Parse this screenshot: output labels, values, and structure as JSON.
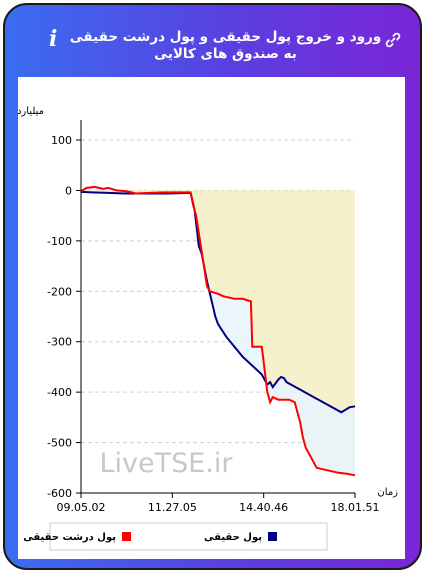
{
  "header": {
    "title": "ورود و خروج پول حقیقی و پول درشت حقیقی به صندوق های کالایی",
    "info_icon": "info-icon",
    "link_icon": "link-icon"
  },
  "watermark": "LiveTSE.ir",
  "colors": {
    "series_real": "#000080",
    "series_big": "#ff0000",
    "fill_upper": "#f5f0c8",
    "fill_lower": "#fdf6c4",
    "fill_between": "#e8f3fb"
  },
  "chart_data": {
    "type": "line",
    "ylabel": "میلیارد تومان",
    "xlabel": "زمان",
    "ylim": [
      -600,
      100
    ],
    "yticks": [
      100,
      0,
      -100,
      -200,
      -300,
      -400,
      -500,
      -600
    ],
    "xticks": [
      "09.05.02",
      "11.27.05",
      "14.40.46",
      "18.01.51"
    ],
    "grid": "horizontal dashed",
    "legend_position": "bottom",
    "series": [
      {
        "name": "پول حقیقی",
        "color": "#000080",
        "x": [
          0,
          0.04,
          0.1,
          0.16,
          0.25,
          0.32,
          0.4,
          0.415,
          0.43,
          0.44,
          0.46,
          0.49,
          0.5,
          0.53,
          0.56,
          0.59,
          0.62,
          0.66,
          0.68,
          0.69,
          0.7,
          0.72,
          0.73,
          0.74,
          0.75,
          0.8,
          0.85,
          0.9,
          0.95,
          0.98,
          1.0
        ],
        "y": [
          -3,
          -4,
          -5,
          -6,
          -6,
          -6,
          -5,
          -40,
          -110,
          -125,
          -180,
          -250,
          -265,
          -290,
          -310,
          -330,
          -345,
          -365,
          -385,
          -380,
          -390,
          -375,
          -370,
          -372,
          -380,
          -395,
          -410,
          -425,
          -440,
          -430,
          -428
        ]
      },
      {
        "name": "پول درشت حقیقی",
        "color": "#ff0000",
        "x": [
          0,
          0.02,
          0.05,
          0.08,
          0.1,
          0.13,
          0.17,
          0.2,
          0.25,
          0.3,
          0.35,
          0.4,
          0.41,
          0.42,
          0.44,
          0.46,
          0.47,
          0.5,
          0.52,
          0.56,
          0.59,
          0.62,
          0.625,
          0.66,
          0.68,
          0.69,
          0.7,
          0.72,
          0.74,
          0.76,
          0.78,
          0.8,
          0.81,
          0.82,
          0.84,
          0.86,
          0.9,
          0.94,
          0.97,
          1.0
        ],
        "y": [
          -2,
          5,
          7,
          3,
          5,
          0,
          -2,
          -6,
          -5,
          -4,
          -4,
          -4,
          -30,
          -50,
          -120,
          -190,
          -200,
          -205,
          -210,
          -215,
          -215,
          -220,
          -310,
          -310,
          -400,
          -420,
          -410,
          -415,
          -415,
          -415,
          -420,
          -460,
          -490,
          -510,
          -530,
          -550,
          -555,
          -560,
          -562,
          -565
        ]
      }
    ]
  }
}
